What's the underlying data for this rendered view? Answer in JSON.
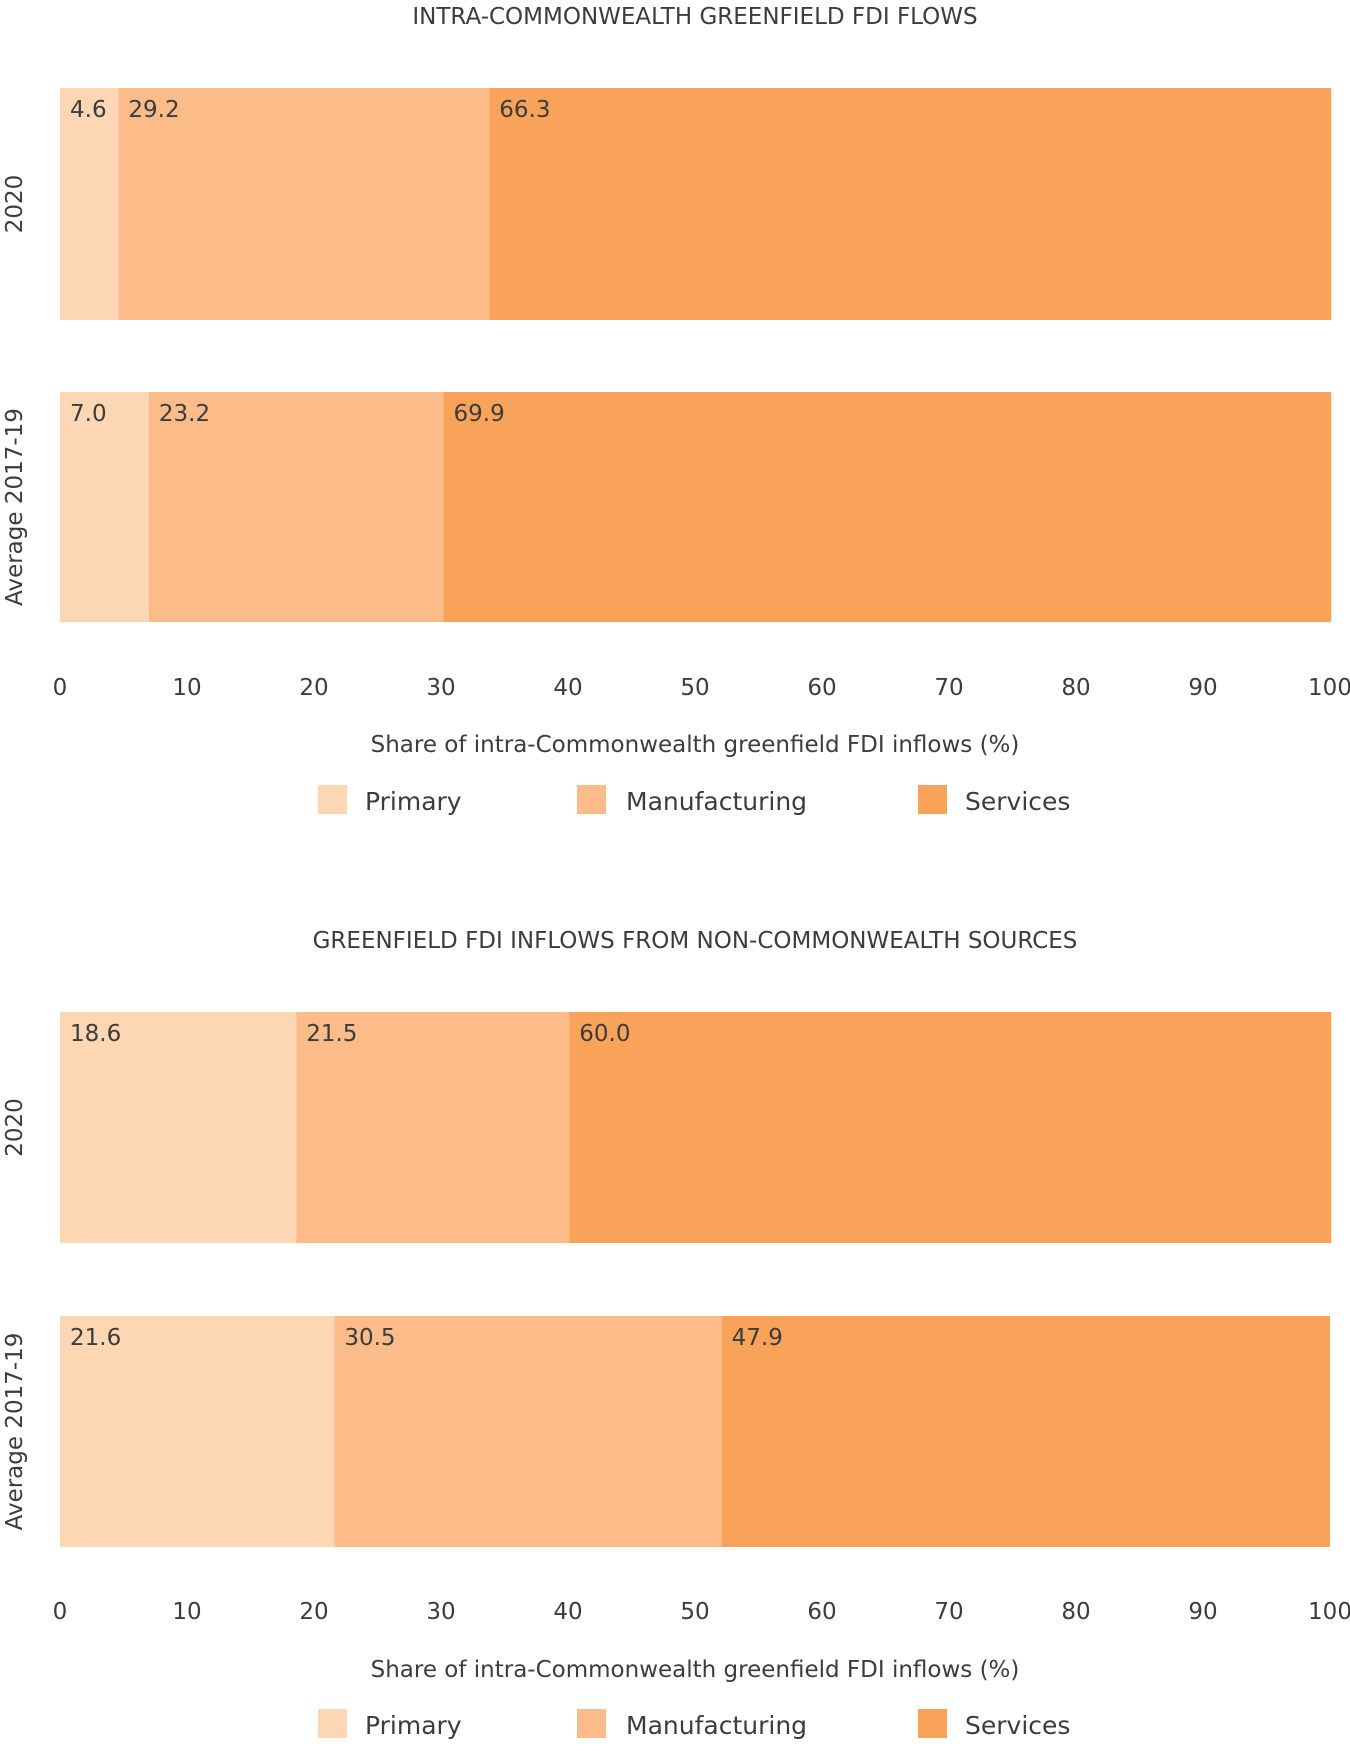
{
  "colors": {
    "primary": "#FDD6B4",
    "manufacturing": "#FBBC89",
    "services": "#F9A35A",
    "text": "#3c3c3c"
  },
  "chart_data": [
    {
      "type": "bar",
      "orientation": "horizontal",
      "stacked": true,
      "title": "INTRA-COMMONWEALTH GREENFIELD FDI FLOWS",
      "xlabel": "Share of intra-Commonwealth greenfield FDI inflows (%)",
      "xlim": [
        0,
        100
      ],
      "xticks": [
        "0",
        "10",
        "20",
        "30",
        "40",
        "50",
        "60",
        "70",
        "80",
        "90",
        "100"
      ],
      "categories": [
        "2020",
        "Average 2017-19"
      ],
      "series": [
        {
          "name": "Primary",
          "values": [
            4.6,
            7.0
          ],
          "labels": [
            "4.6",
            "7.0"
          ],
          "color": "#FDD6B4"
        },
        {
          "name": "Manufacturing",
          "values": [
            29.2,
            23.2
          ],
          "labels": [
            "29.2",
            "23.2"
          ],
          "color": "#FBBC89"
        },
        {
          "name": "Services",
          "values": [
            66.3,
            69.9
          ],
          "labels": [
            "66.3",
            "69.9"
          ],
          "color": "#F9A35A"
        }
      ],
      "legend": "bottom",
      "grid": false
    },
    {
      "type": "bar",
      "orientation": "horizontal",
      "stacked": true,
      "title": "GREENFIELD FDI INFLOWS FROM NON-COMMONWEALTH SOURCES",
      "xlabel": "Share of intra-Commonwealth greenfield FDI inflows (%)",
      "xlim": [
        0,
        100
      ],
      "xticks": [
        "0",
        "10",
        "20",
        "30",
        "40",
        "50",
        "60",
        "70",
        "80",
        "90",
        "100"
      ],
      "categories": [
        "2020",
        "Average 2017-19"
      ],
      "series": [
        {
          "name": "Primary",
          "values": [
            18.6,
            21.6
          ],
          "labels": [
            "18.6",
            "21.6"
          ],
          "color": "#FDD6B4"
        },
        {
          "name": "Manufacturing",
          "values": [
            21.5,
            30.5
          ],
          "labels": [
            "21.5",
            "30.5"
          ],
          "color": "#FBBC89"
        },
        {
          "name": "Services",
          "values": [
            60.0,
            47.9
          ],
          "labels": [
            "60.0",
            "47.9"
          ],
          "color": "#F9A35A"
        }
      ],
      "legend": "bottom",
      "grid": false
    }
  ]
}
